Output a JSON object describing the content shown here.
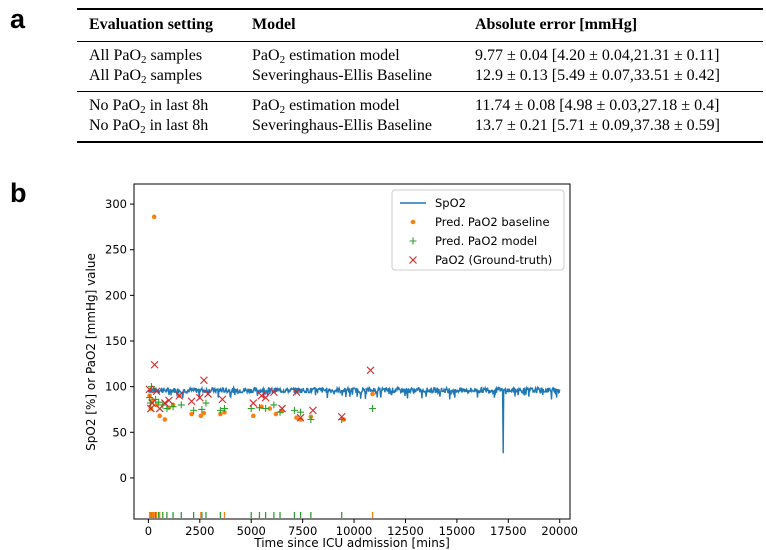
{
  "panels": {
    "a": "a",
    "b": "b"
  },
  "table": {
    "headers": [
      "Evaluation setting",
      "Model",
      "Absolute error [mmHg]"
    ],
    "groups": [
      {
        "rows": [
          {
            "setting_pre": "All PaO",
            "setting_sub": "2",
            "setting_post": " samples",
            "model_pre": "PaO",
            "model_sub": "2",
            "model_post": " estimation model",
            "error": "9.77 ± 0.04 [4.20 ± 0.04,21.31 ± 0.11]"
          },
          {
            "setting_pre": "All PaO",
            "setting_sub": "2",
            "setting_post": " samples",
            "model_pre": "Severinghaus-Ellis Baseline",
            "model_sub": "",
            "model_post": "",
            "error": "12.9 ± 0.13 [5.49 ± 0.07,33.51 ± 0.42]"
          }
        ]
      },
      {
        "rows": [
          {
            "setting_pre": "No PaO",
            "setting_sub": "2",
            "setting_post": " in last 8h",
            "model_pre": "PaO",
            "model_sub": "2",
            "model_post": " estimation model",
            "error": "11.74 ± 0.08 [4.98 ± 0.03,27.18 ± 0.4]"
          },
          {
            "setting_pre": "No PaO",
            "setting_sub": "2",
            "setting_post": " in last 8h",
            "model_pre": "Severinghaus-Ellis Baseline",
            "model_sub": "",
            "model_post": "",
            "error": "13.7 ± 0.21 [5.71 ± 0.09,37.38 ± 0.59]"
          }
        ]
      }
    ]
  },
  "chart_data": {
    "type": "line",
    "xlabel": "Time since ICU admission [mins]",
    "ylabel": "SpO2 [%] or PaO2 [mmHg] value",
    "xlim": [
      -700,
      20500
    ],
    "ylim": [
      -45,
      322
    ],
    "xticks": [
      0,
      2500,
      5000,
      7500,
      10000,
      12500,
      15000,
      17500,
      20000
    ],
    "yticks": [
      0,
      50,
      100,
      150,
      200,
      250,
      300
    ],
    "grid": false,
    "legend_position": "top-right",
    "colors": {
      "spo2": "#1f77b4",
      "baseline": "#ff7f0e",
      "model": "#2ca02c",
      "truth": "#d62728"
    },
    "series": [
      {
        "name": "SpO2",
        "kind": "line",
        "x_start": 0,
        "x_end": 20000,
        "mean": 96,
        "dips": [
          [
            3400,
            88
          ],
          [
            5300,
            90
          ],
          [
            9800,
            89
          ],
          [
            11300,
            88
          ],
          [
            12600,
            87
          ],
          [
            13500,
            89
          ],
          [
            14900,
            88
          ],
          [
            16000,
            88
          ],
          [
            17250,
            27
          ],
          [
            18500,
            89
          ],
          [
            19600,
            86
          ],
          [
            19850,
            88
          ]
        ]
      },
      {
        "name": "Pred. PaO2 baseline",
        "kind": "scatter",
        "points": [
          [
            60,
            90
          ],
          [
            120,
            76
          ],
          [
            200,
            85
          ],
          [
            280,
            286
          ],
          [
            400,
            80
          ],
          [
            550,
            68
          ],
          [
            800,
            64
          ],
          [
            1000,
            77
          ],
          [
            1200,
            80
          ],
          [
            1500,
            90
          ],
          [
            2100,
            70
          ],
          [
            2550,
            68
          ],
          [
            2700,
            71
          ],
          [
            3500,
            70
          ],
          [
            3700,
            72
          ],
          [
            5100,
            68
          ],
          [
            5500,
            78
          ],
          [
            5900,
            76
          ],
          [
            6200,
            70
          ],
          [
            6500,
            73
          ],
          [
            7200,
            66
          ],
          [
            7400,
            64
          ],
          [
            7900,
            67
          ],
          [
            9500,
            64
          ],
          [
            10900,
            92
          ]
        ]
      },
      {
        "name": "Pred. PaO2 model",
        "kind": "scatter",
        "points": [
          [
            60,
            88
          ],
          [
            100,
            82
          ],
          [
            150,
            100
          ],
          [
            250,
            97
          ],
          [
            350,
            86
          ],
          [
            500,
            83
          ],
          [
            700,
            80
          ],
          [
            900,
            76
          ],
          [
            1200,
            78
          ],
          [
            1600,
            80
          ],
          [
            2200,
            74
          ],
          [
            2600,
            75
          ],
          [
            2800,
            82
          ],
          [
            3500,
            74
          ],
          [
            3700,
            76
          ],
          [
            5000,
            76
          ],
          [
            5400,
            77
          ],
          [
            5700,
            76
          ],
          [
            6100,
            80
          ],
          [
            6400,
            72
          ],
          [
            7100,
            74
          ],
          [
            7400,
            72
          ],
          [
            7900,
            64
          ],
          [
            9400,
            64
          ],
          [
            10900,
            76
          ]
        ]
      },
      {
        "name": "PaO2 (Ground-truth)",
        "kind": "scatter",
        "points": [
          [
            50,
            97
          ],
          [
            120,
            76
          ],
          [
            180,
            82
          ],
          [
            300,
            124
          ],
          [
            400,
            95
          ],
          [
            550,
            76
          ],
          [
            800,
            82
          ],
          [
            1000,
            85
          ],
          [
            1500,
            90
          ],
          [
            2100,
            84
          ],
          [
            2500,
            88
          ],
          [
            2700,
            107
          ],
          [
            2900,
            92
          ],
          [
            3600,
            86
          ],
          [
            5100,
            82
          ],
          [
            5500,
            90
          ],
          [
            5700,
            88
          ],
          [
            6100,
            94
          ],
          [
            6500,
            76
          ],
          [
            7200,
            94
          ],
          [
            7400,
            66
          ],
          [
            8000,
            74
          ],
          [
            9400,
            67
          ],
          [
            10800,
            118
          ]
        ]
      }
    ],
    "rug": {
      "baseline": [
        60,
        120,
        200,
        280,
        400,
        550,
        2550,
        3700,
        10900
      ],
      "model": [
        100,
        150,
        250,
        350,
        500,
        700,
        900,
        1200,
        1600,
        2200,
        2600,
        2800,
        3500,
        5000,
        5400,
        5700,
        6100,
        6400,
        7100,
        7400,
        7900,
        9400
      ]
    }
  }
}
